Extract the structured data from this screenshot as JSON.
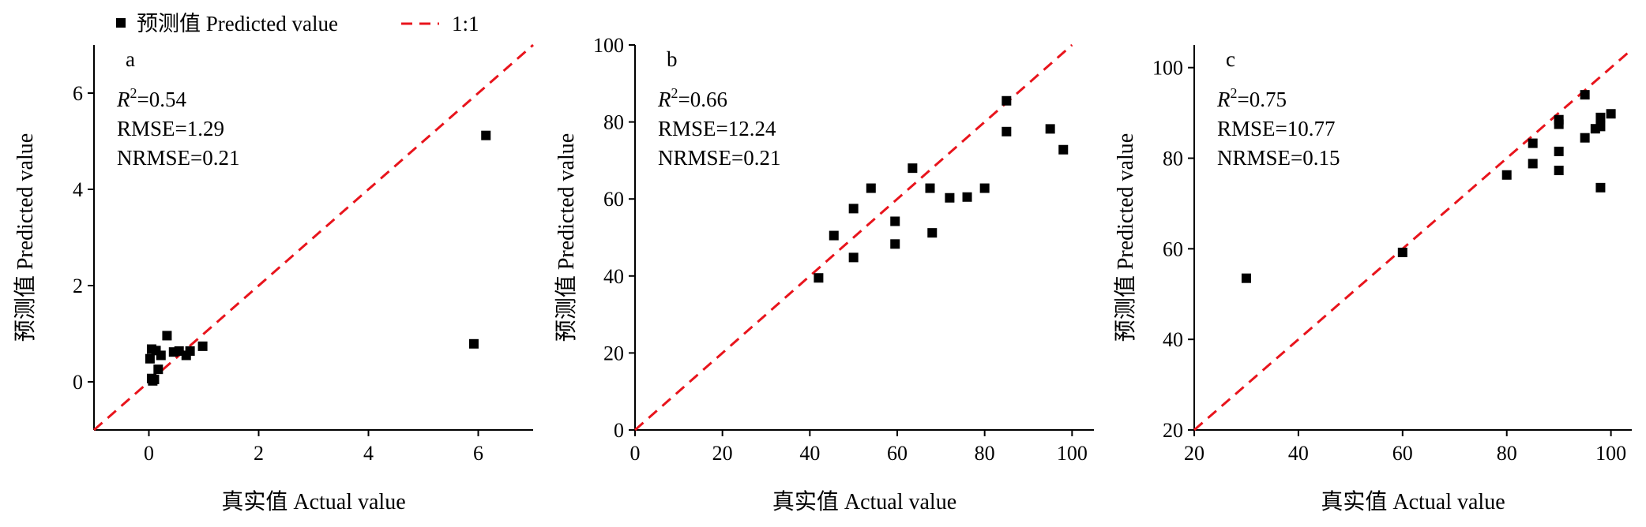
{
  "legend": {
    "predicted_label": "预测值 Predicted value",
    "one_to_one_label": "1:1",
    "marker_color": "#000000",
    "line_color": "#e8141c"
  },
  "chart_data": [
    {
      "type": "scatter",
      "panel": "a",
      "xlabel": "真实值 Actual value",
      "ylabel": "预测值 Predicted value",
      "xlim": [
        -1,
        7
      ],
      "ylim": [
        -1,
        7
      ],
      "xticks": [
        0,
        2,
        4,
        6
      ],
      "yticks": [
        0,
        2,
        4,
        6
      ],
      "stats": {
        "r2": "0.54",
        "rmse": "RMSE=1.29",
        "nrmse": "NRMSE=0.21"
      },
      "points": [
        [
          0.02,
          0.48
        ],
        [
          0.05,
          0.68
        ],
        [
          0.05,
          0.07
        ],
        [
          0.07,
          0.02
        ],
        [
          0.1,
          0.05
        ],
        [
          0.13,
          0.65
        ],
        [
          0.17,
          0.26
        ],
        [
          0.22,
          0.55
        ],
        [
          0.33,
          0.96
        ],
        [
          0.45,
          0.62
        ],
        [
          0.55,
          0.64
        ],
        [
          0.68,
          0.55
        ],
        [
          0.75,
          0.64
        ],
        [
          0.98,
          0.74
        ],
        [
          5.92,
          0.79
        ],
        [
          6.14,
          5.12
        ]
      ]
    },
    {
      "type": "scatter",
      "panel": "b",
      "xlabel": "真实值 Actual value",
      "ylabel": "预测值 Predicted value",
      "xlim": [
        0,
        105
      ],
      "ylim": [
        0,
        100
      ],
      "xticks": [
        0,
        20,
        40,
        60,
        80,
        100
      ],
      "yticks": [
        0,
        20,
        40,
        60,
        80,
        100
      ],
      "stats": {
        "r2": "0.66",
        "rmse": "RMSE=12.24",
        "nrmse": "NRMSE=0.21"
      },
      "points": [
        [
          42,
          39.5
        ],
        [
          45.5,
          50.5
        ],
        [
          50,
          57.5
        ],
        [
          50,
          44.8
        ],
        [
          54,
          62.8
        ],
        [
          59.5,
          54.2
        ],
        [
          59.5,
          48.3
        ],
        [
          63.5,
          68
        ],
        [
          67.5,
          62.8
        ],
        [
          68,
          51.2
        ],
        [
          72,
          60.3
        ],
        [
          76,
          60.5
        ],
        [
          80,
          62.8
        ],
        [
          85,
          85.5
        ],
        [
          85,
          77.5
        ],
        [
          95,
          78.2
        ],
        [
          98,
          72.8
        ]
      ]
    },
    {
      "type": "scatter",
      "panel": "c",
      "xlabel": "真实值 Actual value",
      "ylabel": "预测值 Predicted value",
      "xlim": [
        20,
        104
      ],
      "ylim": [
        20,
        105
      ],
      "xticks": [
        20,
        40,
        60,
        80,
        100
      ],
      "yticks": [
        20,
        40,
        60,
        80,
        100
      ],
      "stats": {
        "r2": "0.75",
        "rmse": "RMSE=10.77",
        "nrmse": "NRMSE=0.15"
      },
      "points": [
        [
          30,
          53.5
        ],
        [
          60,
          59.2
        ],
        [
          80,
          76.3
        ],
        [
          85,
          83.3
        ],
        [
          85,
          78.8
        ],
        [
          90,
          88.5
        ],
        [
          90,
          87.5
        ],
        [
          90,
          81.5
        ],
        [
          90,
          77.3
        ],
        [
          95,
          94
        ],
        [
          95,
          84.5
        ],
        [
          97,
          86.5
        ],
        [
          98,
          89
        ],
        [
          98,
          87
        ],
        [
          98,
          73.5
        ],
        [
          100,
          89.8
        ]
      ]
    }
  ]
}
